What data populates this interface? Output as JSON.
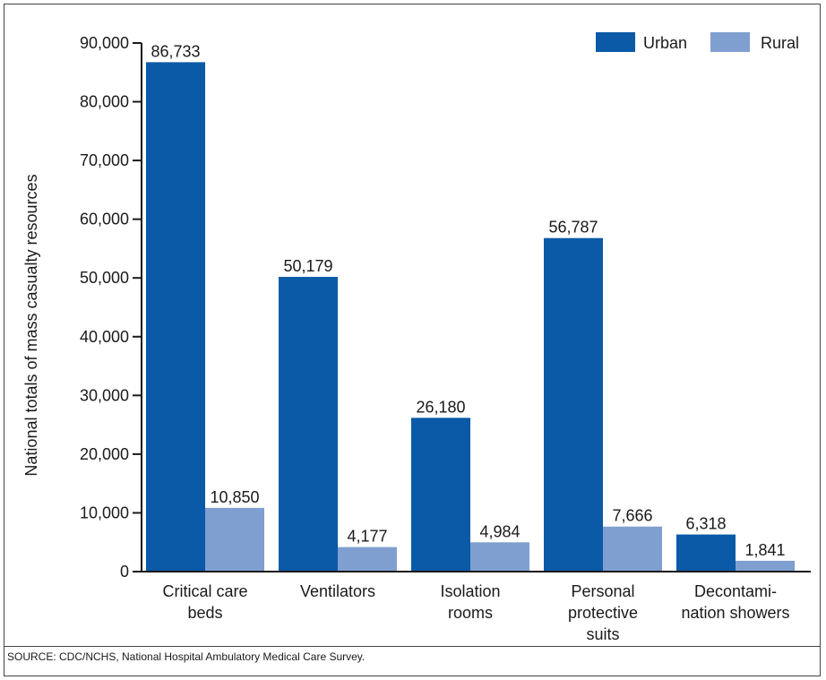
{
  "chart_data": {
    "type": "bar",
    "ylabel": "National totals of mass casualty resources",
    "ylim": [
      0,
      90000
    ],
    "yticks": [
      "0",
      "10,000",
      "20,000",
      "30,000",
      "40,000",
      "50,000",
      "60,000",
      "70,000",
      "80,000",
      "90,000"
    ],
    "categories": [
      [
        "Critical care",
        "beds"
      ],
      [
        "Ventilators"
      ],
      [
        "Isolation",
        "rooms"
      ],
      [
        "Personal",
        "protective",
        "suits"
      ],
      [
        "Decontami-",
        "nation showers"
      ]
    ],
    "series": [
      {
        "name": "Urban",
        "color": "#0a5aa8",
        "values": [
          86733,
          50179,
          26180,
          56787,
          6318
        ],
        "labels": [
          "86,733",
          "50,179",
          "26,180",
          "56,787",
          "6,318"
        ]
      },
      {
        "name": "Rural",
        "color": "#7f9fd0",
        "values": [
          10850,
          4177,
          4984,
          7666,
          1841
        ],
        "labels": [
          "10,850",
          "4,177",
          "4,984",
          "7,666",
          "1,841"
        ]
      }
    ],
    "legend_position": "top-right",
    "grid": false
  },
  "footer": {
    "source": "SOURCE: CDC/NCHS, National Hospital Ambulatory Medical Care Survey."
  }
}
